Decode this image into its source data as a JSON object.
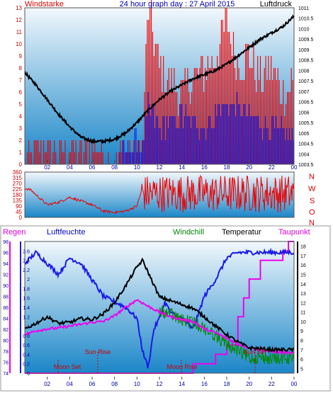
{
  "top": {
    "title": "24 hour graph day : 27 April 2015",
    "left_label": "Windstarke",
    "right_label": "Luftdruck"
  },
  "colors": {
    "wind_speed": "#ee0000",
    "wind_gust": "#0022ee",
    "pressure": "#000000",
    "direction": "#ee0000",
    "humidity": "#1a1ae6",
    "temperature": "#000000",
    "windchill": "#008800",
    "dewpoint": "#ee00ee",
    "rain": "#ee00ee",
    "gradient_top": "#f2f8fc",
    "gradient_bottom": "#1a86c8",
    "tick_red": "#cc0000",
    "tick_blue": "#0000aa"
  },
  "mid": {
    "compass": [
      "N",
      "W",
      "S",
      "O",
      "N"
    ]
  },
  "bottom": {
    "legend": {
      "rain": "Regen",
      "humidity": "Luftfeuchte",
      "windchill": "Windchill",
      "temperature": "Temperatur",
      "dewpoint": "Taupunkt"
    },
    "annotations": {
      "moon_set": "Moon Set",
      "sun_rise": "Sun Rise",
      "moon_rise": "Moon Rise",
      "sun_set": "Sun Set"
    }
  },
  "chart_data": [
    {
      "type": "line",
      "title": "24 hour graph day : 27 April 2015",
      "x_ticks": [
        "02",
        "04",
        "06",
        "08",
        "10",
        "12",
        "14",
        "16",
        "18",
        "20",
        "22",
        "00"
      ],
      "left_axis": {
        "label": "Windstarke",
        "range": [
          0,
          13
        ],
        "ticks": [
          "0",
          "1",
          "2",
          "3",
          "4",
          "5",
          "6",
          "7",
          "8",
          "9",
          "10",
          "11",
          "12",
          "13"
        ]
      },
      "right_axis": {
        "label": "Luftdruck",
        "range": [
          1003.5,
          1011
        ],
        "ticks": [
          "1003.5",
          "1004",
          "1004.5",
          "1005",
          "1005.5",
          "1006",
          "1006.5",
          "1007",
          "1007.5",
          "1008",
          "1008.5",
          "1009",
          "1009.5",
          "1010",
          "1010.5",
          "1011"
        ]
      },
      "series": [
        {
          "name": "Luftdruck",
          "x": [
            0,
            1,
            2,
            3,
            4,
            5,
            5.5,
            6,
            7,
            8,
            9,
            10,
            11,
            12,
            13,
            14,
            15,
            16,
            17,
            18,
            19,
            20,
            21,
            22,
            23,
            24
          ],
          "values": [
            1007.9,
            1007.3,
            1006.6,
            1005.9,
            1005.3,
            1004.8,
            1004.7,
            1004.6,
            1004.6,
            1004.7,
            1005.0,
            1005.5,
            1006.1,
            1006.6,
            1007.0,
            1007.3,
            1007.6,
            1007.8,
            1008.0,
            1008.3,
            1008.7,
            1009.1,
            1009.5,
            1009.8,
            1010.1,
            1010.6
          ]
        },
        {
          "name": "Windstarke",
          "x": [
            0,
            1,
            2,
            3,
            4,
            5,
            6,
            7,
            8,
            9,
            10,
            10.5,
            11,
            12,
            13,
            14,
            15,
            16,
            17,
            18,
            19,
            20,
            21,
            22,
            23,
            24
          ],
          "values": [
            0,
            1,
            2,
            1,
            2,
            1,
            2,
            1,
            0,
            1,
            1,
            2,
            13,
            8,
            7,
            6,
            7,
            8,
            9,
            12,
            8,
            9,
            7,
            8,
            6,
            7
          ]
        },
        {
          "name": "Windboen",
          "x": [
            0,
            8,
            9,
            10,
            10.5,
            11,
            12,
            14,
            16,
            18,
            20,
            22,
            24
          ],
          "values": [
            0,
            0,
            1,
            2,
            1,
            5,
            3,
            4,
            3,
            5,
            4,
            3,
            2
          ]
        }
      ]
    },
    {
      "type": "line",
      "left_axis": {
        "range": [
          0,
          360
        ],
        "ticks": [
          "0",
          "45",
          "90",
          "135",
          "180",
          "225",
          "270",
          "315",
          "360"
        ]
      },
      "right_labels": [
        "N",
        "W",
        "S",
        "O",
        "N"
      ],
      "series": [
        {
          "name": "Windrichtung",
          "x": [
            0,
            0.5,
            1,
            2,
            3,
            4,
            5,
            6,
            7,
            8,
            9,
            10,
            10.5,
            11,
            12,
            13,
            14,
            15,
            16,
            17,
            18,
            19,
            20,
            21,
            22,
            23,
            24
          ],
          "values": [
            230,
            220,
            180,
            100,
            120,
            160,
            130,
            100,
            50,
            40,
            50,
            90,
            240,
            300,
            200,
            260,
            60,
            210,
            80,
            260,
            40,
            200,
            60,
            150,
            50,
            100,
            60
          ]
        }
      ]
    },
    {
      "type": "line",
      "x_ticks": [
        "02",
        "04",
        "06",
        "08",
        "10",
        "12",
        "14",
        "16",
        "18",
        "20",
        "22",
        "00"
      ],
      "axes": {
        "rain": {
          "label": "Regen",
          "range": [
            0,
            2.8
          ],
          "ticks": [
            "0",
            "0.2",
            "0.4",
            "0.6",
            "0.8",
            "1",
            "1.2",
            "1.4",
            "1.6",
            "1.8",
            "2",
            "2.2",
            "2.4",
            "2.6"
          ]
        },
        "humidity": {
          "label": "Luftfeuchte",
          "range": [
            74,
            98
          ],
          "ticks": [
            "74",
            "76",
            "78",
            "80",
            "82",
            "84",
            "86",
            "88",
            "90",
            "92",
            "94",
            "96",
            "98"
          ]
        },
        "temperature": {
          "label": "Temperatur",
          "range": [
            4.5,
            18.5
          ],
          "ticks": [
            "5",
            "6",
            "7",
            "8",
            "9",
            "10",
            "11",
            "12",
            "13",
            "14",
            "15",
            "16",
            "17",
            "18"
          ]
        }
      },
      "series": [
        {
          "name": "Luftfeuchte",
          "x": [
            0,
            0.5,
            1,
            2,
            3,
            4,
            5,
            6,
            7,
            8,
            9,
            10,
            10.5,
            11,
            11.5,
            12,
            12.5,
            13,
            14,
            15,
            16,
            17,
            18,
            19,
            20,
            21,
            22,
            23,
            24
          ],
          "values": [
            94,
            95,
            96,
            94,
            92,
            95,
            94,
            91,
            88,
            87,
            86,
            84,
            78,
            75,
            82,
            84,
            87,
            85,
            84,
            82,
            88,
            91,
            95,
            96,
            96,
            96,
            96,
            96,
            96
          ]
        },
        {
          "name": "Temperatur",
          "x": [
            0,
            1,
            2,
            3,
            4,
            5,
            6,
            7,
            8,
            9,
            10,
            10.5,
            11,
            12,
            13,
            14,
            15,
            16,
            17,
            18,
            19,
            20,
            21,
            22,
            23,
            24
          ],
          "values": [
            9.2,
            9.8,
            10.5,
            9.8,
            9.9,
            10.3,
            10.2,
            10.8,
            12.0,
            13.8,
            15.8,
            16.5,
            15.2,
            12.6,
            12.2,
            11.8,
            11.4,
            10.5,
            9.5,
            8.6,
            7.8,
            7.2,
            7.1,
            7.0,
            7.0,
            7.0
          ]
        },
        {
          "name": "Taupunkt",
          "x": [
            0,
            1,
            2,
            3,
            4,
            5,
            6,
            7,
            8,
            9,
            10,
            11,
            12,
            13,
            14,
            15,
            16,
            17,
            18,
            19,
            20,
            21,
            22,
            23,
            24
          ],
          "values": [
            8.6,
            9.0,
            9.2,
            9.3,
            9.5,
            9.7,
            9.9,
            10.0,
            10.6,
            11.5,
            12.3,
            11.6,
            11.0,
            10.5,
            10.2,
            10.0,
            9.2,
            8.8,
            8.2,
            7.6,
            7.2,
            7.0,
            6.8,
            6.7,
            6.6
          ]
        },
        {
          "name": "Windchill",
          "x": [
            12,
            13,
            14,
            15,
            16,
            17,
            18,
            19,
            20,
            21,
            22,
            23,
            24
          ],
          "values": [
            11.8,
            11.5,
            10.8,
            10.6,
            10.0,
            9.2,
            8.2,
            7.6,
            6.8,
            6.9,
            6.7,
            6.8,
            6.8
          ]
        },
        {
          "name": "Regen",
          "x": [
            0,
            14,
            15,
            16,
            17,
            18,
            19,
            19.5,
            20,
            21,
            22,
            23,
            23.5,
            24
          ],
          "values": [
            0,
            0,
            0.2,
            0.2,
            0.4,
            0.6,
            1.2,
            1.6,
            2.0,
            2.4,
            2.4,
            2.6,
            2.8,
            2.8
          ]
        }
      ]
    }
  ]
}
